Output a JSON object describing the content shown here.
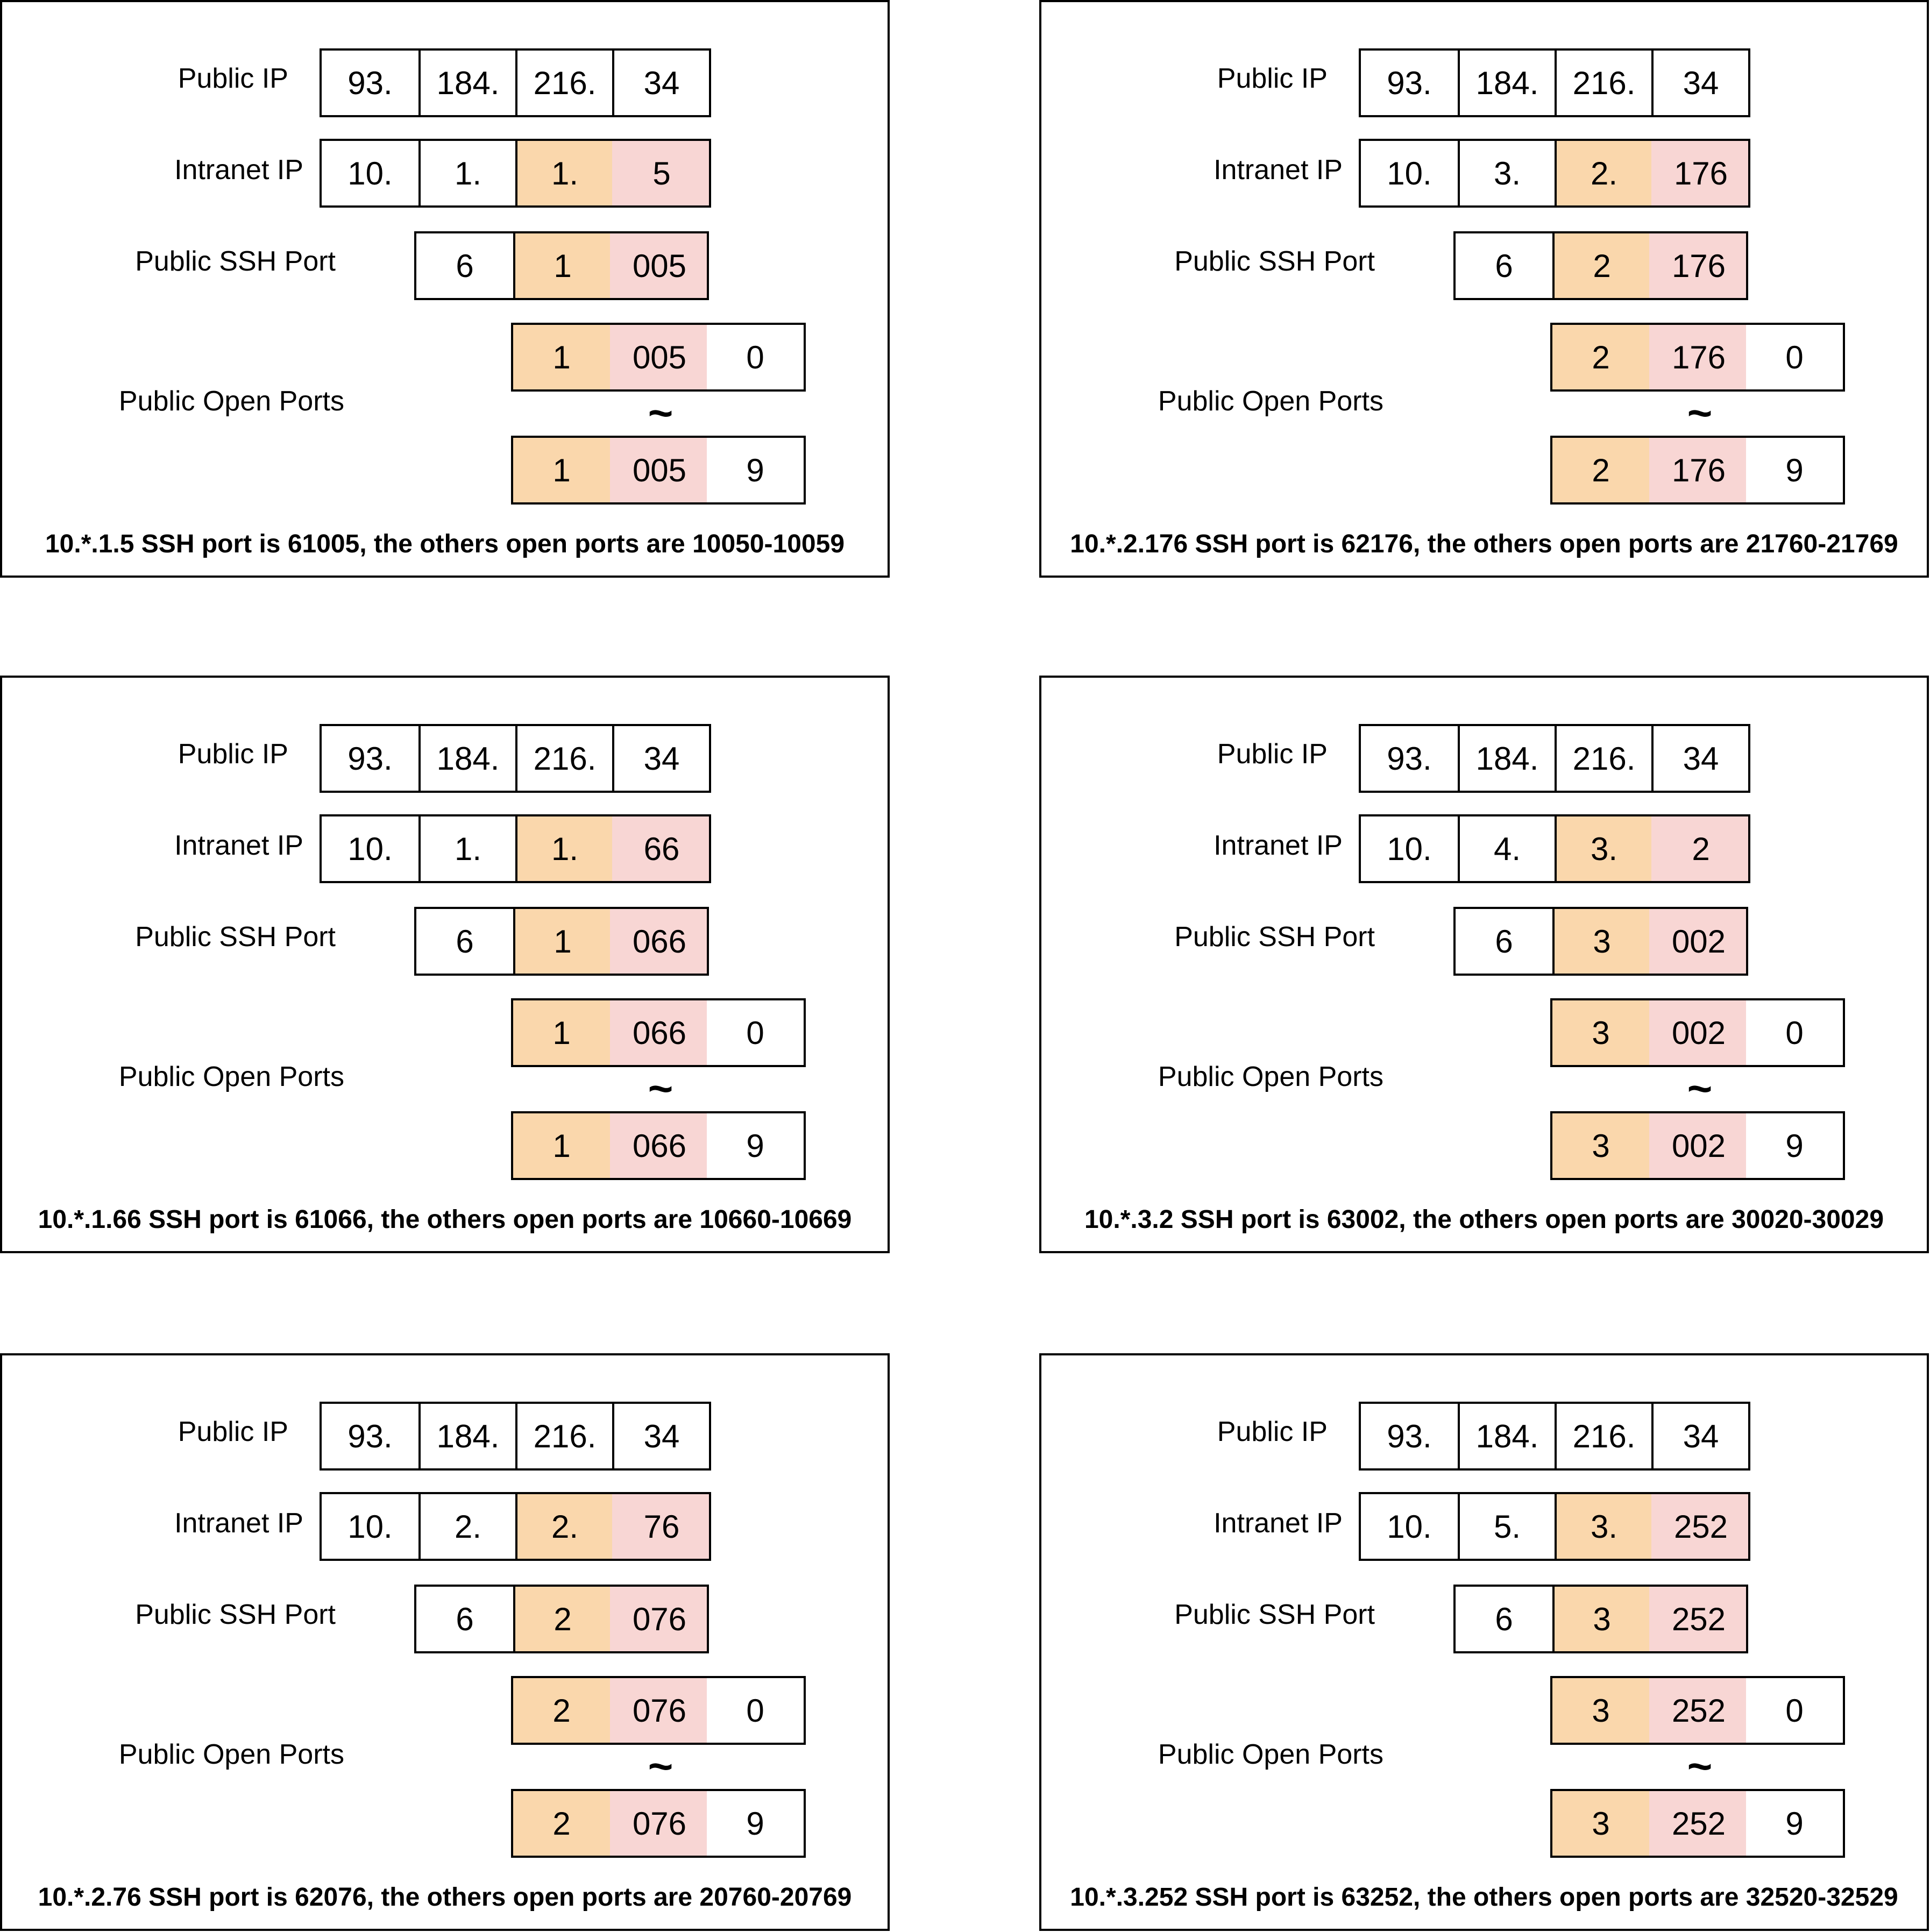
{
  "labels": {
    "public_ip": "Public IP",
    "intranet_ip": "Intranet IP",
    "public_ssh_port": "Public SSH Port",
    "public_open_ports": "Public Open Ports",
    "tilde": "~"
  },
  "colors": {
    "orange": "#fad7ac",
    "pink": "#f8d6d4"
  },
  "panels": [
    {
      "public_ip": [
        "93.",
        "184.",
        "216.",
        "34"
      ],
      "intranet_ip": [
        "10.",
        "1.",
        "1.",
        "5"
      ],
      "ssh_port": [
        "6",
        "1",
        "005"
      ],
      "open_start": [
        "1",
        "005",
        "0"
      ],
      "open_end": [
        "1",
        "005",
        "9"
      ],
      "caption": "10.*.1.5 SSH port is 61005, the others open ports are 10050-10059"
    },
    {
      "public_ip": [
        "93.",
        "184.",
        "216.",
        "34"
      ],
      "intranet_ip": [
        "10.",
        "3.",
        "2.",
        "176"
      ],
      "ssh_port": [
        "6",
        "2",
        "176"
      ],
      "open_start": [
        "2",
        "176",
        "0"
      ],
      "open_end": [
        "2",
        "176",
        "9"
      ],
      "caption": "10.*.2.176 SSH port is 62176, the others open ports are 21760-21769"
    },
    {
      "public_ip": [
        "93.",
        "184.",
        "216.",
        "34"
      ],
      "intranet_ip": [
        "10.",
        "1.",
        "1.",
        "66"
      ],
      "ssh_port": [
        "6",
        "1",
        "066"
      ],
      "open_start": [
        "1",
        "066",
        "0"
      ],
      "open_end": [
        "1",
        "066",
        "9"
      ],
      "caption": "10.*.1.66 SSH port is 61066, the others open ports are 10660-10669"
    },
    {
      "public_ip": [
        "93.",
        "184.",
        "216.",
        "34"
      ],
      "intranet_ip": [
        "10.",
        "4.",
        "3.",
        "2"
      ],
      "ssh_port": [
        "6",
        "3",
        "002"
      ],
      "open_start": [
        "3",
        "002",
        "0"
      ],
      "open_end": [
        "3",
        "002",
        "9"
      ],
      "caption": "10.*.3.2 SSH port is 63002, the others open ports are 30020-30029"
    },
    {
      "public_ip": [
        "93.",
        "184.",
        "216.",
        "34"
      ],
      "intranet_ip": [
        "10.",
        "2.",
        "2.",
        "76"
      ],
      "ssh_port": [
        "6",
        "2",
        "076"
      ],
      "open_start": [
        "2",
        "076",
        "0"
      ],
      "open_end": [
        "2",
        "076",
        "9"
      ],
      "caption": "10.*.2.76 SSH port is 62076, the others open ports are 20760-20769"
    },
    {
      "public_ip": [
        "93.",
        "184.",
        "216.",
        "34"
      ],
      "intranet_ip": [
        "10.",
        "5.",
        "3.",
        "252"
      ],
      "ssh_port": [
        "6",
        "3",
        "252"
      ],
      "open_start": [
        "3",
        "252",
        "0"
      ],
      "open_end": [
        "3",
        "252",
        "9"
      ],
      "caption": "10.*.3.252 SSH port is 63252, the others open ports are 32520-32529"
    }
  ]
}
